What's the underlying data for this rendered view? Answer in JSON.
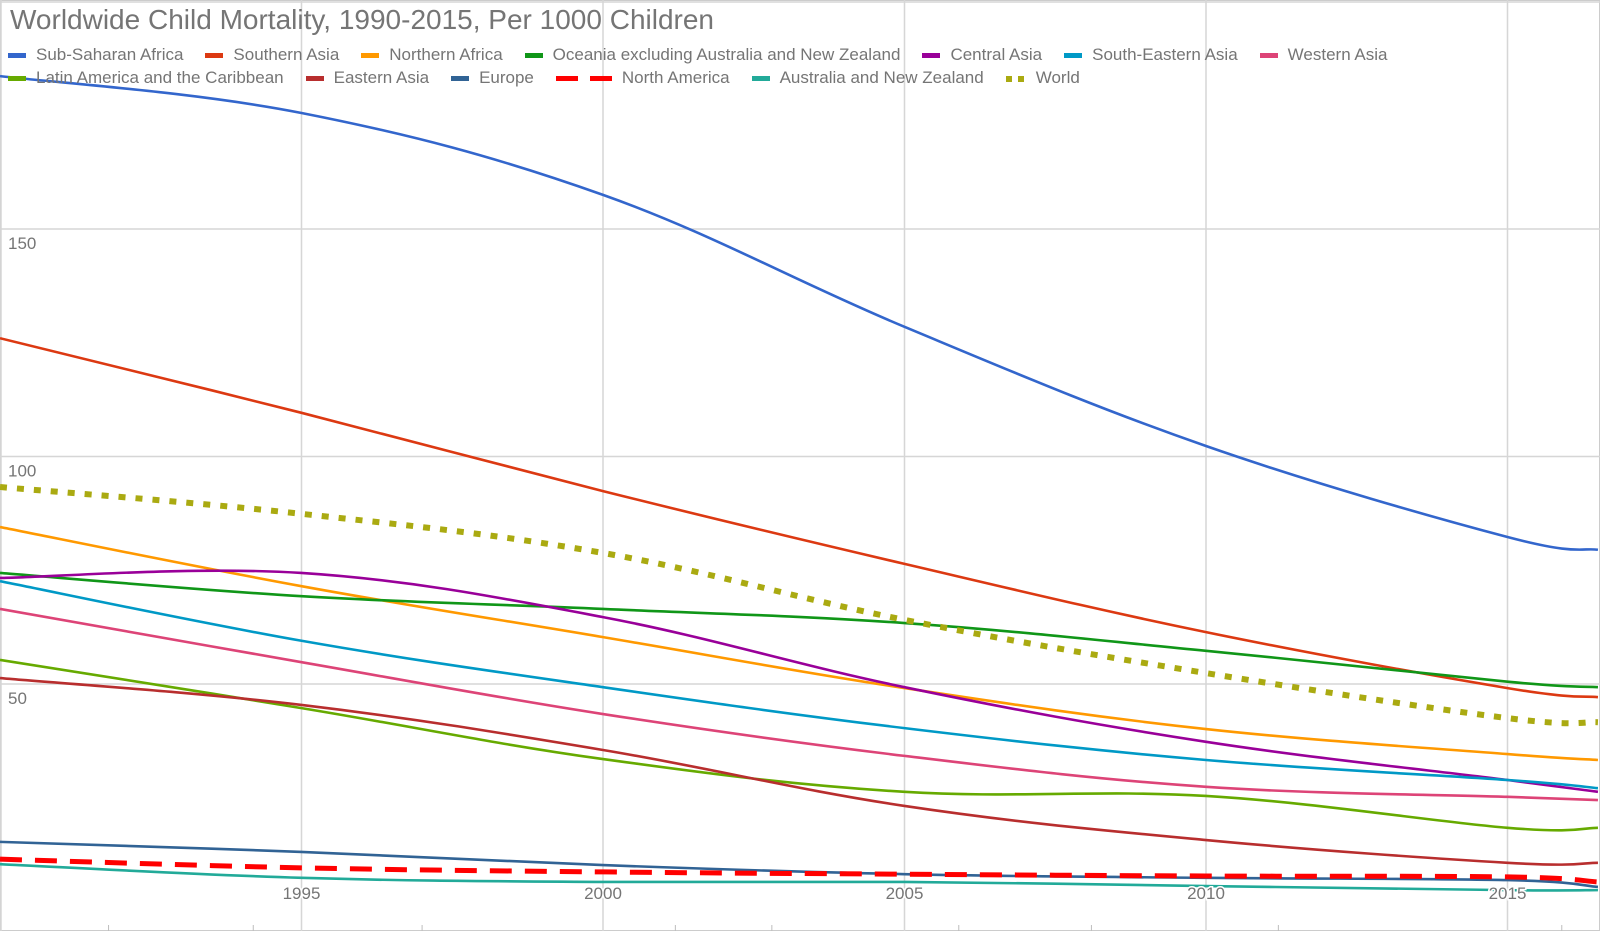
{
  "chart_data": {
    "type": "line",
    "title": "Worldwide Child Mortality, 1990-2015, Per 1000 Children",
    "xlabel": "",
    "ylabel": "",
    "x": [
      1990,
      1995,
      2000,
      2005,
      2010,
      2015,
      2016.5
    ],
    "xlim": [
      1990,
      2016.5
    ],
    "ylim": [
      0,
      200
    ],
    "x_ticks": [
      "1995",
      "2000",
      "2005",
      "2010",
      "2015"
    ],
    "y_ticks": [
      "50",
      "100",
      "150"
    ],
    "grid": true,
    "legend_position": "top",
    "series": [
      {
        "name": "Sub-Saharan Africa",
        "color": "#3366cc",
        "style": "solid",
        "values": [
          183.6,
          175.5,
          157.5,
          128.5,
          102.3,
          82.3,
          79.5
        ]
      },
      {
        "name": "Southern Asia",
        "color": "#dc3912",
        "style": "solid",
        "values": [
          126.0,
          109.6,
          92.4,
          76.4,
          61.4,
          49.1,
          47.1
        ]
      },
      {
        "name": "Northern Africa",
        "color": "#ff9900",
        "style": "solid",
        "values": [
          84.5,
          71.5,
          60.3,
          49.1,
          40.1,
          34.6,
          33.3
        ]
      },
      {
        "name": "Oceania excluding Australia and New Zealand",
        "color": "#109618",
        "style": "solid",
        "values": [
          74.4,
          69.3,
          66.5,
          63.4,
          57.3,
          50.5,
          49.3
        ]
      },
      {
        "name": "Central Asia",
        "color": "#990099",
        "style": "solid",
        "values": [
          73.3,
          74.4,
          64.7,
          49.3,
          37.3,
          28.9,
          26.3
        ]
      },
      {
        "name": "South-Eastern Asia",
        "color": "#0099c6",
        "style": "solid",
        "values": [
          72.6,
          59.5,
          49.3,
          40.3,
          33.3,
          28.9,
          27.1
        ]
      },
      {
        "name": "Western Asia",
        "color": "#dd4477",
        "style": "solid",
        "values": [
          66.5,
          54.8,
          43.4,
          34.2,
          27.4,
          25.2,
          24.5
        ]
      },
      {
        "name": "Latin America and the Caribbean",
        "color": "#66aa00",
        "style": "solid",
        "values": [
          55.3,
          44.7,
          33.5,
          26.3,
          25.4,
          18.4,
          18.4
        ]
      },
      {
        "name": "Eastern Asia",
        "color": "#b82e2e",
        "style": "solid",
        "values": [
          51.3,
          45.4,
          35.5,
          23.2,
          15.7,
          10.7,
          10.7
        ]
      },
      {
        "name": "Europe",
        "color": "#316395",
        "style": "solid",
        "values": [
          15.3,
          13.1,
          10.2,
          8.2,
          7.4,
          6.9,
          5.4
        ]
      },
      {
        "name": "North America",
        "color": "#ff0000",
        "style": "dashed",
        "values": [
          11.5,
          9.6,
          8.7,
          8.2,
          7.8,
          7.6,
          6.5
        ]
      },
      {
        "name": "Australia and New Zealand",
        "color": "#22aa99",
        "style": "solid",
        "values": [
          10.4,
          7.4,
          6.5,
          6.5,
          5.6,
          4.7,
          4.7
        ]
      },
      {
        "name": "World",
        "color": "#aaaa11",
        "style": "dotted",
        "values": [
          93.3,
          87.4,
          78.8,
          64.1,
          52.4,
          42.5,
          41.6
        ]
      }
    ]
  }
}
